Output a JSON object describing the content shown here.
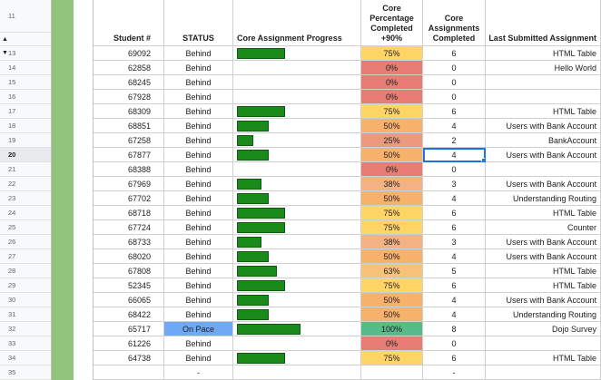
{
  "headers": {
    "student": "Student #",
    "status": "STATUS",
    "progress": "Core Assignment Progress",
    "percentage": "Core Percentage Completed +90%",
    "assignments": "Core Assignments Completed",
    "last": "Last Submitted Assignment"
  },
  "header_row_number": "11",
  "selected_row_number": "20",
  "rows": [
    {
      "rn": "13",
      "student": "69092",
      "status": "Behind",
      "pct": "75%",
      "pct_value": 0.75,
      "count": "6",
      "last": "HTML Table"
    },
    {
      "rn": "14",
      "student": "62858",
      "status": "Behind",
      "pct": "0%",
      "pct_value": 0,
      "count": "0",
      "last": "Hello World"
    },
    {
      "rn": "15",
      "student": "68245",
      "status": "Behind",
      "pct": "0%",
      "pct_value": 0,
      "count": "0",
      "last": ""
    },
    {
      "rn": "16",
      "student": "67928",
      "status": "Behind",
      "pct": "0%",
      "pct_value": 0,
      "count": "0",
      "last": ""
    },
    {
      "rn": "17",
      "student": "68309",
      "status": "Behind",
      "pct": "75%",
      "pct_value": 0.75,
      "count": "6",
      "last": "HTML Table"
    },
    {
      "rn": "18",
      "student": "68851",
      "status": "Behind",
      "pct": "50%",
      "pct_value": 0.5,
      "count": "4",
      "last": "Users with Bank Account"
    },
    {
      "rn": "19",
      "student": "67258",
      "status": "Behind",
      "pct": "25%",
      "pct_value": 0.25,
      "count": "2",
      "last": "BankAccount"
    },
    {
      "rn": "20",
      "student": "67877",
      "status": "Behind",
      "pct": "50%",
      "pct_value": 0.5,
      "count": "4",
      "last": "Users with Bank Account"
    },
    {
      "rn": "21",
      "student": "68388",
      "status": "Behind",
      "pct": "0%",
      "pct_value": 0,
      "count": "0",
      "last": ""
    },
    {
      "rn": "22",
      "student": "67969",
      "status": "Behind",
      "pct": "38%",
      "pct_value": 0.38,
      "count": "3",
      "last": "Users with Bank Account"
    },
    {
      "rn": "23",
      "student": "67702",
      "status": "Behind",
      "pct": "50%",
      "pct_value": 0.5,
      "count": "4",
      "last": "Understanding Routing"
    },
    {
      "rn": "24",
      "student": "68718",
      "status": "Behind",
      "pct": "75%",
      "pct_value": 0.75,
      "count": "6",
      "last": "HTML Table"
    },
    {
      "rn": "25",
      "student": "67724",
      "status": "Behind",
      "pct": "75%",
      "pct_value": 0.75,
      "count": "6",
      "last": "Counter"
    },
    {
      "rn": "26",
      "student": "68733",
      "status": "Behind",
      "pct": "38%",
      "pct_value": 0.38,
      "count": "3",
      "last": "Users with Bank Account"
    },
    {
      "rn": "27",
      "student": "68020",
      "status": "Behind",
      "pct": "50%",
      "pct_value": 0.5,
      "count": "4",
      "last": "Users with Bank Account"
    },
    {
      "rn": "28",
      "student": "67808",
      "status": "Behind",
      "pct": "63%",
      "pct_value": 0.63,
      "count": "5",
      "last": "HTML Table"
    },
    {
      "rn": "29",
      "student": "52345",
      "status": "Behind",
      "pct": "75%",
      "pct_value": 0.75,
      "count": "6",
      "last": "HTML Table"
    },
    {
      "rn": "30",
      "student": "66065",
      "status": "Behind",
      "pct": "50%",
      "pct_value": 0.5,
      "count": "4",
      "last": "Users with Bank Account"
    },
    {
      "rn": "31",
      "student": "68422",
      "status": "Behind",
      "pct": "50%",
      "pct_value": 0.5,
      "count": "4",
      "last": "Understanding Routing"
    },
    {
      "rn": "32",
      "student": "65717",
      "status": "On Pace",
      "pct": "100%",
      "pct_value": 1.0,
      "count": "8",
      "last": "Dojo Survey"
    },
    {
      "rn": "33",
      "student": "61226",
      "status": "Behind",
      "pct": "0%",
      "pct_value": 0,
      "count": "0",
      "last": ""
    },
    {
      "rn": "34",
      "student": "64738",
      "status": "Behind",
      "pct": "75%",
      "pct_value": 0.75,
      "count": "6",
      "last": "HTML Table"
    },
    {
      "rn": "35",
      "student": "",
      "status": "-",
      "pct": "",
      "pct_value": null,
      "count": "-",
      "last": ""
    }
  ],
  "colors": {
    "behind_status_bg": "#ffffff",
    "on_pace_bg": "#6fa8f5",
    "pct_0": "#e67c73",
    "pct_25": "#ec9a7d",
    "pct_38": "#f4b183",
    "pct_50": "#f6b26b",
    "pct_63": "#f9c27a",
    "pct_75": "#ffd666",
    "pct_100": "#57bb8a",
    "progress_bar": "#1a8a1a",
    "row_group_bar": "#93c47d"
  }
}
